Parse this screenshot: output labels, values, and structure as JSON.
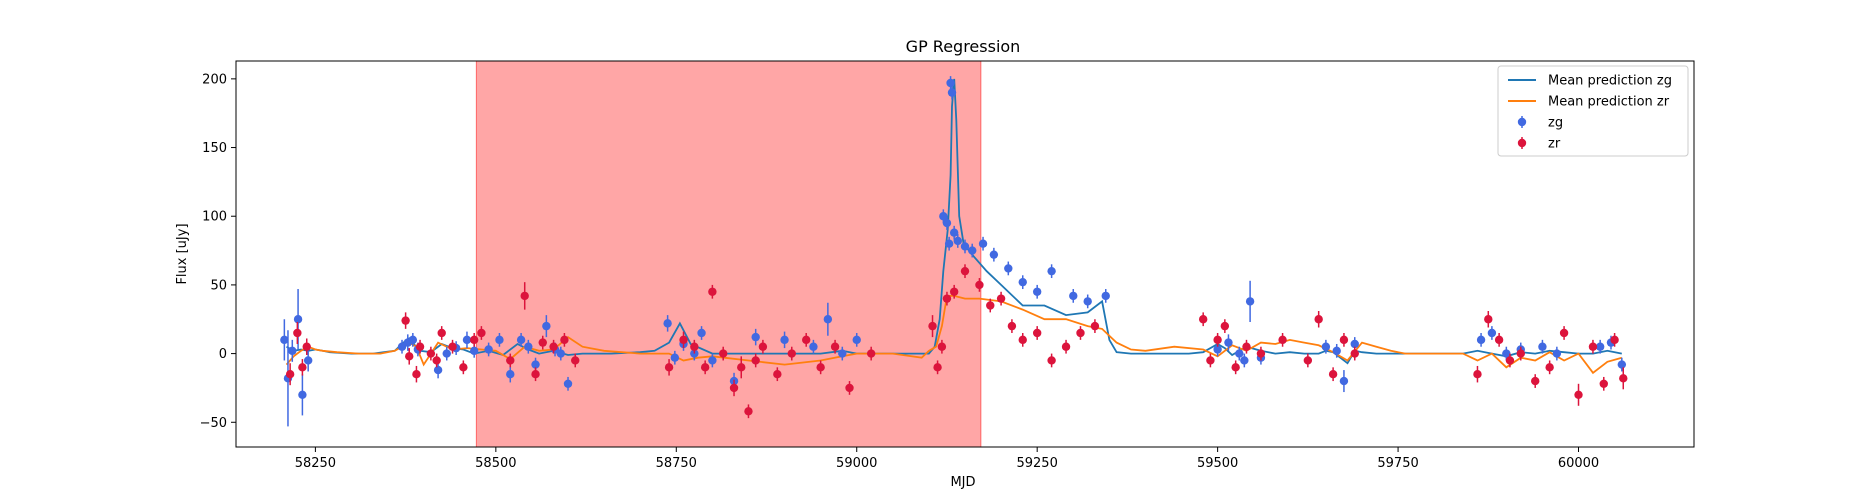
{
  "chart_data": {
    "type": "scatter",
    "title": "GP Regression",
    "xlabel": "MJD",
    "ylabel": "Flux [uJy]",
    "xlim": [
      58140,
      60160
    ],
    "ylim": [
      -68,
      213
    ],
    "xticks": [
      58250,
      58500,
      58750,
      59000,
      59250,
      59500,
      59750,
      60000
    ],
    "yticks": [
      -50,
      0,
      50,
      100,
      150,
      200
    ],
    "grid": false,
    "legend_position": "top-right",
    "shaded_region": {
      "x_start": 58473,
      "x_end": 59172,
      "color": "#ff0000",
      "alpha": 0.35
    },
    "series": [
      {
        "name": "Mean prediction zg",
        "kind": "line",
        "color": "#1f77b4",
        "x": [
          58210,
          58220,
          58230,
          58240,
          58250,
          58260,
          58270,
          58300,
          58330,
          58360,
          58372,
          58380,
          58388,
          58395,
          58410,
          58425,
          58440,
          58455,
          58470,
          58490,
          58510,
          58530,
          58545,
          58560,
          58580,
          58600,
          58620,
          58660,
          58700,
          58720,
          58740,
          58755,
          58770,
          58800,
          58850,
          58900,
          58950,
          58980,
          59000,
          59050,
          59090,
          59100,
          59108,
          59115,
          59120,
          59126,
          59130,
          59132,
          59135,
          59138,
          59142,
          59148,
          59160,
          59180,
          59200,
          59230,
          59260,
          59290,
          59320,
          59340,
          59350,
          59360,
          59380,
          59420,
          59460,
          59480,
          59500,
          59510,
          59520,
          59540,
          59560,
          59580,
          59600,
          59620,
          59640,
          59650,
          59660,
          59670,
          59680,
          59690,
          59700,
          59720,
          59760,
          59800,
          59840,
          59860,
          59880,
          59900,
          59920,
          59940,
          59960,
          59980,
          60000,
          60020,
          60040,
          60060
        ],
        "y": [
          5,
          2,
          3,
          2,
          3,
          2,
          1,
          0,
          0,
          2,
          8,
          11,
          6,
          2,
          1,
          7,
          4,
          3,
          0,
          2,
          -1,
          7,
          3,
          0,
          2,
          -1,
          0,
          0,
          1,
          2,
          8,
          22,
          7,
          0,
          0,
          0,
          0,
          2,
          0,
          0,
          0,
          0,
          5,
          25,
          60,
          90,
          130,
          180,
          200,
          170,
          100,
          80,
          72,
          60,
          50,
          35,
          35,
          28,
          30,
          38,
          10,
          1,
          0,
          0,
          0,
          1,
          7,
          4,
          -1,
          5,
          2,
          0,
          1,
          0,
          0,
          2,
          1,
          -3,
          -7,
          2,
          1,
          0,
          0,
          0,
          0,
          2,
          0,
          -2,
          1,
          0,
          2,
          1,
          0,
          0,
          2,
          0
        ]
      },
      {
        "name": "Mean prediction zr",
        "kind": "line",
        "color": "#ff7f0e",
        "x": [
          58210,
          58220,
          58230,
          58240,
          58250,
          58260,
          58280,
          58310,
          58340,
          58360,
          58380,
          58390,
          58400,
          58420,
          58440,
          58460,
          58480,
          58500,
          58520,
          58540,
          58560,
          58580,
          58600,
          58620,
          58650,
          58700,
          58740,
          58760,
          58780,
          58800,
          58850,
          58900,
          58950,
          58980,
          59000,
          59050,
          59090,
          59100,
          59110,
          59118,
          59125,
          59135,
          59150,
          59170,
          59200,
          59230,
          59260,
          59290,
          59320,
          59340,
          59360,
          59380,
          59400,
          59440,
          59480,
          59500,
          59520,
          59540,
          59560,
          59580,
          59600,
          59620,
          59640,
          59660,
          59680,
          59700,
          59720,
          59740,
          59760,
          59800,
          59840,
          59860,
          59880,
          59900,
          59920,
          59940,
          59960,
          59980,
          60000,
          60020,
          60040,
          60060
        ],
        "y": [
          -8,
          -2,
          2,
          5,
          3,
          2,
          1,
          0,
          0,
          2,
          8,
          5,
          -8,
          8,
          3,
          4,
          3,
          2,
          -4,
          5,
          2,
          3,
          12,
          5,
          2,
          0,
          0,
          -5,
          -3,
          -2,
          -5,
          -8,
          -5,
          -2,
          0,
          0,
          -3,
          2,
          5,
          20,
          42,
          42,
          40,
          40,
          38,
          32,
          25,
          25,
          20,
          18,
          8,
          3,
          2,
          5,
          3,
          -2,
          6,
          2,
          8,
          7,
          10,
          8,
          6,
          1,
          -5,
          8,
          5,
          2,
          0,
          0,
          0,
          -5,
          0,
          -10,
          -3,
          -5,
          1,
          -5,
          0,
          -14,
          -6,
          -3
        ]
      },
      {
        "name": "zg",
        "kind": "errorbar",
        "color": "#4169e1",
        "x": [
          58207,
          58212,
          58218,
          58226,
          58232,
          58240,
          58370,
          58378,
          58385,
          58392,
          58420,
          58432,
          58445,
          58460,
          58470,
          58490,
          58505,
          58520,
          58535,
          58545,
          58555,
          58570,
          58582,
          58590,
          58600,
          58738,
          58748,
          58760,
          58775,
          58785,
          58800,
          58830,
          58860,
          58900,
          58940,
          58960,
          58980,
          59000,
          59120,
          59125,
          59128,
          59130,
          59132,
          59135,
          59140,
          59150,
          59160,
          59175,
          59190,
          59210,
          59230,
          59250,
          59270,
          59300,
          59320,
          59345,
          59500,
          59515,
          59530,
          59537,
          59545,
          59560,
          59650,
          59665,
          59675,
          59690,
          59865,
          59880,
          59900,
          59920,
          59950,
          59970,
          60030,
          60045,
          60060
        ],
        "y": [
          10,
          -18,
          2,
          25,
          -30,
          -5,
          5,
          8,
          10,
          3,
          -12,
          0,
          4,
          10,
          2,
          3,
          10,
          -15,
          10,
          5,
          -8,
          20,
          3,
          0,
          -22,
          22,
          -3,
          7,
          0,
          15,
          -5,
          -20,
          12,
          10,
          5,
          25,
          0,
          10,
          100,
          95,
          80,
          197,
          190,
          88,
          82,
          78,
          75,
          80,
          72,
          62,
          52,
          45,
          60,
          42,
          38,
          42,
          3,
          8,
          0,
          -5,
          38,
          -3,
          5,
          2,
          -20,
          7,
          10,
          15,
          0,
          3,
          5,
          0,
          5,
          8,
          -8
        ],
        "yerr": [
          15,
          35,
          8,
          22,
          15,
          8,
          5,
          6,
          5,
          5,
          6,
          5,
          5,
          6,
          5,
          5,
          5,
          6,
          5,
          5,
          5,
          8,
          5,
          5,
          5,
          6,
          5,
          5,
          5,
          5,
          5,
          6,
          6,
          6,
          5,
          12,
          5,
          5,
          5,
          5,
          5,
          5,
          5,
          5,
          5,
          5,
          5,
          5,
          5,
          5,
          5,
          5,
          5,
          5,
          5,
          5,
          5,
          6,
          5,
          5,
          15,
          5,
          5,
          5,
          8,
          5,
          5,
          5,
          5,
          5,
          5,
          5,
          5,
          5,
          5
        ]
      },
      {
        "name": "zr",
        "kind": "errorbar",
        "color": "#dc143c",
        "x": [
          58215,
          58225,
          58232,
          58238,
          58375,
          58380,
          58390,
          58395,
          58410,
          58418,
          58425,
          58440,
          58455,
          58470,
          58480,
          58520,
          58540,
          58555,
          58565,
          58580,
          58595,
          58610,
          58740,
          58760,
          58775,
          58790,
          58800,
          58815,
          58830,
          58840,
          58850,
          58860,
          58870,
          58890,
          58910,
          58930,
          58950,
          58970,
          58990,
          59020,
          59105,
          59112,
          59118,
          59125,
          59135,
          59150,
          59170,
          59185,
          59200,
          59215,
          59230,
          59250,
          59270,
          59290,
          59310,
          59330,
          59480,
          59490,
          59500,
          59510,
          59525,
          59540,
          59560,
          59590,
          59625,
          59640,
          59660,
          59675,
          59690,
          59860,
          59875,
          59890,
          59905,
          59920,
          59940,
          59960,
          59980,
          60000,
          60020,
          60035,
          60050,
          60062
        ],
        "y": [
          -15,
          15,
          -10,
          5,
          24,
          -2,
          -15,
          5,
          0,
          -5,
          15,
          5,
          -10,
          10,
          15,
          -5,
          42,
          -15,
          8,
          5,
          10,
          -5,
          -10,
          10,
          5,
          -10,
          45,
          0,
          -25,
          -10,
          -42,
          -5,
          5,
          -15,
          0,
          10,
          -10,
          5,
          -25,
          0,
          20,
          -10,
          5,
          40,
          45,
          60,
          50,
          35,
          40,
          20,
          10,
          15,
          -5,
          5,
          15,
          20,
          25,
          -5,
          10,
          20,
          -10,
          5,
          0,
          10,
          -5,
          25,
          -15,
          10,
          0,
          -15,
          25,
          10,
          -5,
          0,
          -20,
          -10,
          15,
          -30,
          5,
          -22,
          10,
          -18
        ],
        "yerr": [
          8,
          8,
          6,
          6,
          6,
          6,
          6,
          5,
          5,
          5,
          5,
          5,
          5,
          5,
          5,
          5,
          10,
          5,
          5,
          5,
          5,
          5,
          6,
          6,
          5,
          5,
          5,
          5,
          6,
          8,
          5,
          5,
          5,
          5,
          5,
          5,
          5,
          5,
          5,
          5,
          8,
          5,
          5,
          5,
          5,
          5,
          5,
          5,
          5,
          5,
          5,
          5,
          5,
          5,
          5,
          5,
          5,
          5,
          5,
          5,
          5,
          5,
          5,
          5,
          5,
          6,
          5,
          5,
          5,
          6,
          6,
          5,
          5,
          5,
          5,
          5,
          5,
          8,
          5,
          5,
          5,
          8
        ]
      }
    ]
  }
}
